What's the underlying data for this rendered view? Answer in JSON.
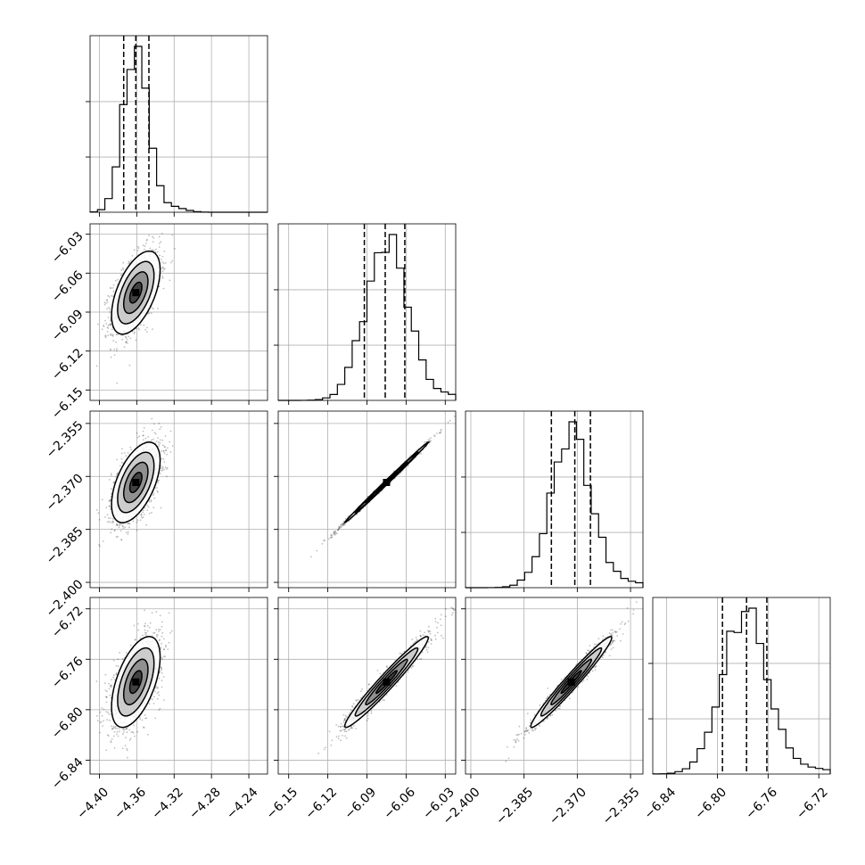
{
  "chart_data": {
    "type": "corner",
    "parameters": [
      {
        "range": [
          -4.41,
          -4.22
        ],
        "ticks": [
          -4.4,
          -4.36,
          -4.32,
          -4.28,
          -4.24
        ],
        "tick_labels": [
          "−4.40",
          "−4.36",
          "−4.32",
          "−4.28",
          "−4.24"
        ],
        "mean": -4.361,
        "sd": 0.013,
        "quantiles": [
          -4.374,
          -4.361,
          -4.347
        ]
      },
      {
        "range": [
          -6.158,
          -6.022
        ],
        "ticks": [
          -6.15,
          -6.12,
          -6.09,
          -6.06,
          -6.03
        ],
        "tick_labels": [
          "−6.15",
          "−6.12",
          "−6.09",
          "−6.06",
          "−6.03"
        ],
        "mean": -6.075,
        "sd": 0.016,
        "quantiles": [
          -6.092,
          -6.076,
          -6.061
        ]
      },
      {
        "range": [
          -2.4015,
          -2.3515
        ],
        "ticks": [
          -2.4,
          -2.385,
          -2.37,
          -2.355
        ],
        "tick_labels": [
          "−2.400",
          "−2.385",
          "−2.370",
          "−2.355"
        ],
        "mean": -2.3717,
        "sd": 0.0057,
        "quantiles": [
          -2.3773,
          -2.3707,
          -2.3663
        ]
      },
      {
        "range": [
          -6.851,
          -6.711
        ],
        "ticks": [
          -6.84,
          -6.8,
          -6.76,
          -6.72
        ],
        "tick_labels": [
          "−6.84",
          "−6.80",
          "−6.76",
          "−6.72"
        ],
        "mean": -6.778,
        "sd": 0.018,
        "quantiles": [
          -6.796,
          -6.777,
          -6.761
        ]
      }
    ],
    "diagonal_hist_ylabels": [
      "",
      "",
      "",
      ""
    ],
    "correlations": [
      [
        1.0,
        0.55,
        0.55,
        0.55
      ],
      [
        0.55,
        1.0,
        0.998,
        0.97
      ],
      [
        0.55,
        0.998,
        1.0,
        0.975
      ],
      [
        0.55,
        0.97,
        0.975,
        1.0
      ]
    ],
    "title": "",
    "xlabel": "",
    "ylabel": "",
    "grid": true,
    "contour_levels_sigma": [
      0.5,
      1.0,
      1.5,
      2.0
    ]
  }
}
